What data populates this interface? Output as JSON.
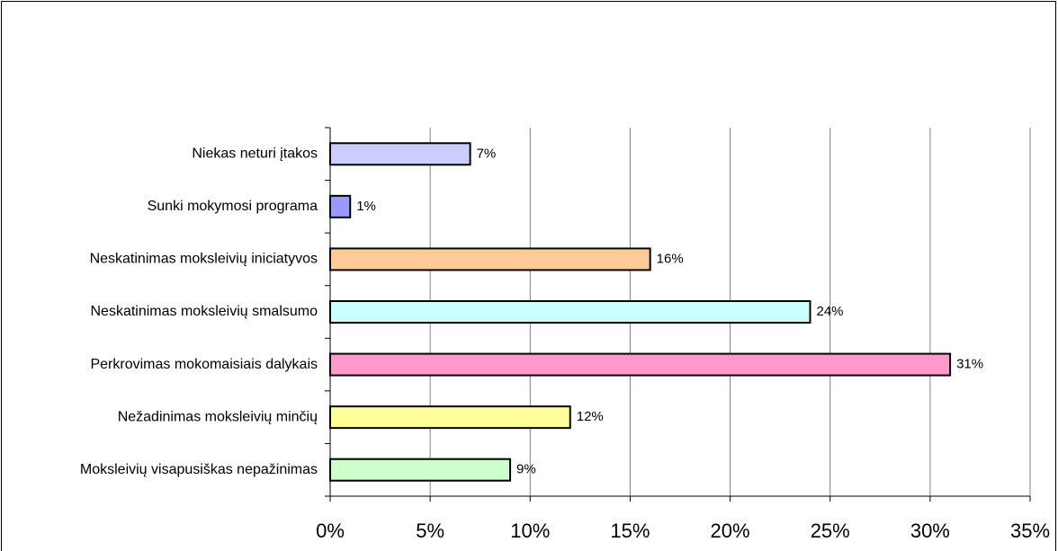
{
  "chart_data": {
    "type": "hbar",
    "categories": [
      "Niekas neturi įtakos",
      "Sunki mokymosi programa",
      "Neskatinimas moksleivių iniciatyvos",
      "Neskatinimas moksleivių smalsumo",
      "Perkrovimas mokomaisiais dalykais",
      "Nežadinimas moksleivių minčių",
      "Moksleivių visapusiškas nepažinimas"
    ],
    "values": [
      7,
      1,
      16,
      24,
      31,
      12,
      9
    ],
    "value_labels": [
      "7%",
      "1%",
      "16%",
      "24%",
      "31%",
      "12%",
      "9%"
    ],
    "colors": [
      "#ccccff",
      "#9999ff",
      "#ffcc99",
      "#ccffff",
      "#ff99cc",
      "#ffff99",
      "#ccffcc"
    ],
    "xlim": [
      0,
      35
    ],
    "xticks": [
      {
        "value": 0,
        "label": "0%"
      },
      {
        "value": 5,
        "label": "5%"
      },
      {
        "value": 10,
        "label": "10%"
      },
      {
        "value": 15,
        "label": "15%"
      },
      {
        "value": 20,
        "label": "20%"
      },
      {
        "value": 25,
        "label": "25%"
      },
      {
        "value": 30,
        "label": "30%"
      },
      {
        "value": 35,
        "label": "35%"
      }
    ],
    "grid": true
  }
}
